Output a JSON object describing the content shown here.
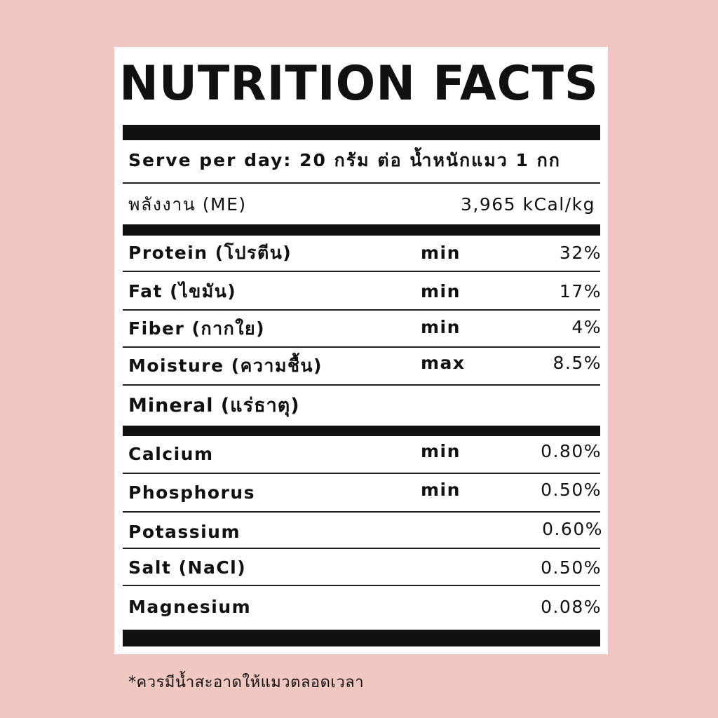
{
  "title": "NUTRITION FACTS",
  "serving": "Serve per day: 20 กรัม ต่อ น้ำหนักแมว 1 กก",
  "energy": {
    "label": "พลังงาน (ME)",
    "value": "3,965 kCal/kg"
  },
  "nutrients": [
    {
      "name": "Protein (โปรตีน)",
      "qualifier": "min",
      "value": "32%"
    },
    {
      "name": "Fat (ไขมัน)",
      "qualifier": "min",
      "value": "17%"
    },
    {
      "name": "Fiber (กากใย)",
      "qualifier": "min",
      "value": "4%"
    },
    {
      "name": "Moisture (ความชื้น)",
      "qualifier": "max",
      "value": "8.5%"
    }
  ],
  "mineral_heading": "Mineral (แร่ธาตุ)",
  "minerals": [
    {
      "name": "Calcium",
      "qualifier": "min",
      "value": "0.80%"
    },
    {
      "name": "Phosphorus",
      "qualifier": "min",
      "value": "0.50%"
    },
    {
      "name": "Potassium",
      "qualifier": "",
      "value": "0.60%"
    },
    {
      "name": "Salt (NaCl)",
      "qualifier": "",
      "value": "0.50%"
    },
    {
      "name": "Magnesium",
      "qualifier": "",
      "value": "0.08%"
    }
  ],
  "footnote": "*ควรมีน้ำสะอาดให้แมวตลอดเวลา",
  "colors": {
    "background": "#f0c7c0",
    "card": "#ffffff",
    "ink": "#111111"
  }
}
